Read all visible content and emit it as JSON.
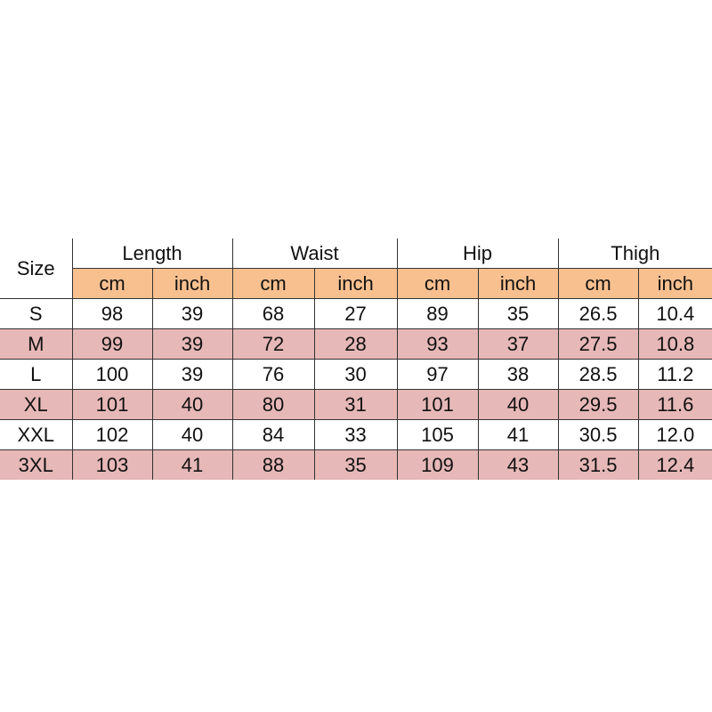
{
  "header": {
    "size_label": "Size",
    "groups": [
      "Length",
      "Waist",
      "Hip",
      "Thigh"
    ],
    "units": [
      "cm",
      "inch"
    ]
  },
  "colors": {
    "header_units_bg": "#f9c08f",
    "alt_row_bg": "#e6b8b7"
  },
  "rows": [
    {
      "size": "S",
      "values": [
        "98",
        "39",
        "68",
        "27",
        "89",
        "35",
        "26.5",
        "10.4"
      ]
    },
    {
      "size": "M",
      "values": [
        "99",
        "39",
        "72",
        "28",
        "93",
        "37",
        "27.5",
        "10.8"
      ]
    },
    {
      "size": "L",
      "values": [
        "100",
        "39",
        "76",
        "30",
        "97",
        "38",
        "28.5",
        "11.2"
      ]
    },
    {
      "size": "XL",
      "values": [
        "101",
        "40",
        "80",
        "31",
        "101",
        "40",
        "29.5",
        "11.6"
      ]
    },
    {
      "size": "XXL",
      "values": [
        "102",
        "40",
        "84",
        "33",
        "105",
        "41",
        "30.5",
        "12.0"
      ]
    },
    {
      "size": "3XL",
      "values": [
        "103",
        "41",
        "88",
        "35",
        "109",
        "43",
        "31.5",
        "12.4"
      ]
    }
  ]
}
